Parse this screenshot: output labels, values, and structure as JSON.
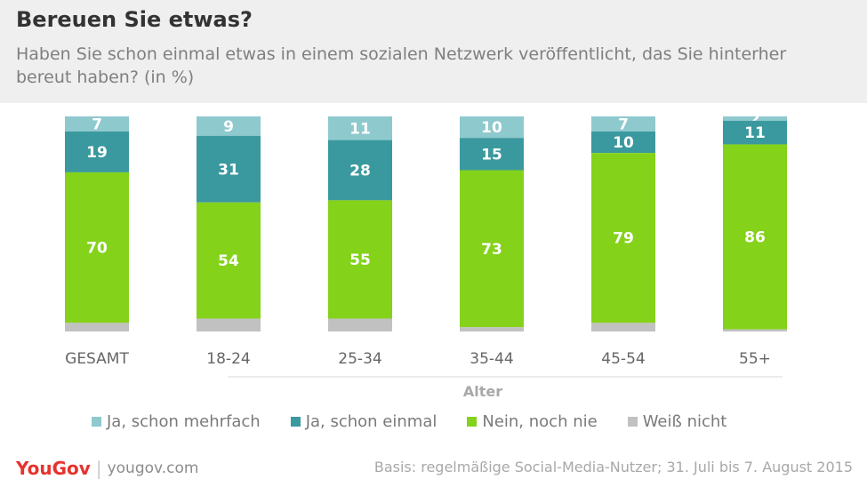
{
  "header": {
    "title": "Bereuen Sie etwas?",
    "subtitle": "Haben Sie schon einmal etwas in einem sozialen Netzwerk veröffentlicht, das Sie hinterher bereut haben? (in %)"
  },
  "chart_data": {
    "type": "bar",
    "stacked": true,
    "categories": [
      "GESAMT",
      "18-24",
      "25-34",
      "35-44",
      "45-54",
      "55+"
    ],
    "series": [
      {
        "name": "Ja, schon mehrfach",
        "color": "#8ec9ce",
        "values": [
          7,
          9,
          11,
          10,
          7,
          2
        ]
      },
      {
        "name": "Ja, schon einmal",
        "color": "#3a999e",
        "values": [
          19,
          31,
          28,
          15,
          10,
          11
        ]
      },
      {
        "name": "Nein, noch nie",
        "color": "#84d21a",
        "values": [
          70,
          54,
          55,
          73,
          79,
          86
        ]
      },
      {
        "name": "Weiß nicht",
        "color": "#c1c1c1",
        "values": [
          4,
          6,
          6,
          2,
          4,
          1
        ]
      }
    ],
    "show_data_labels_for": [
      "Ja, schon mehrfach",
      "Ja, schon einmal",
      "Nein, noch nie"
    ],
    "xlabel": "Alter",
    "xlabel_spans": "age groups (18-24 to 55+)",
    "ylim": [
      0,
      100
    ],
    "grid": false,
    "legend": "bottom"
  },
  "footer": {
    "brand": "YouGov",
    "url": "yougov.com",
    "basis": "Basis: regelmäßige Social-Media-Nutzer; 31. Juli bis 7. August 2015"
  }
}
